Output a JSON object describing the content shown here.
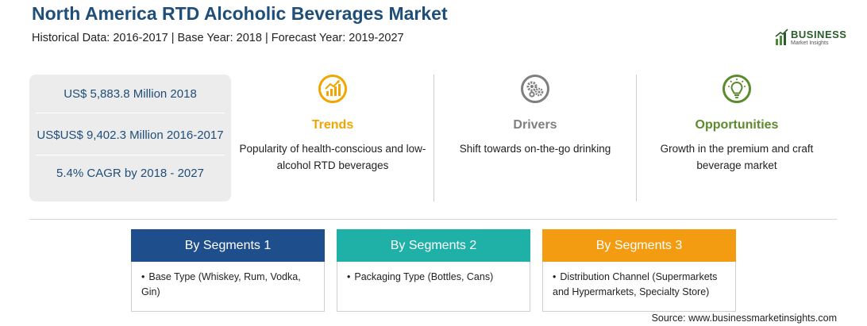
{
  "header": {
    "title": "North America RTD Alcoholic Beverages Market",
    "subtitle": "Historical Data: 2016-2017 | Base Year: 2018 | Forecast Year: 2019-2027"
  },
  "logo": {
    "name": "BUSINESS",
    "tagline": "Market Insights"
  },
  "stats": [
    "US$ 5,883.8 Million 2018",
    "US$US$ 9,402.3 Million 2016-2017",
    "5.4% CAGR by 2018 - 2027"
  ],
  "factors": [
    {
      "label": "Trends",
      "icon": "trend-chart-icon",
      "color": "#f0a500",
      "text": "Popularity of health-conscious and low-alcohol RTD beverages"
    },
    {
      "label": "Drivers",
      "icon": "gears-icon",
      "color": "#7f7f7f",
      "text": "Shift towards on-the-go drinking"
    },
    {
      "label": "Opportunities",
      "icon": "lightbulb-icon",
      "color": "#5c8a2c",
      "text": "Growth in the premium and craft beverage market"
    }
  ],
  "segments": [
    {
      "title": "By Segments 1",
      "color": "#1f4e8c",
      "items": [
        "Base Type (Whiskey, Rum, Vodka, Gin)"
      ]
    },
    {
      "title": "By Segments 2",
      "color": "#1fb0a8",
      "items": [
        "Packaging Type (Bottles, Cans)"
      ]
    },
    {
      "title": "By Segments 3",
      "color": "#f39c12",
      "items": [
        "Distribution Channel (Supermarkets and Hypermarkets, Specialty Store)"
      ]
    }
  ],
  "source": "Source: www.businessmarketinsights.com"
}
